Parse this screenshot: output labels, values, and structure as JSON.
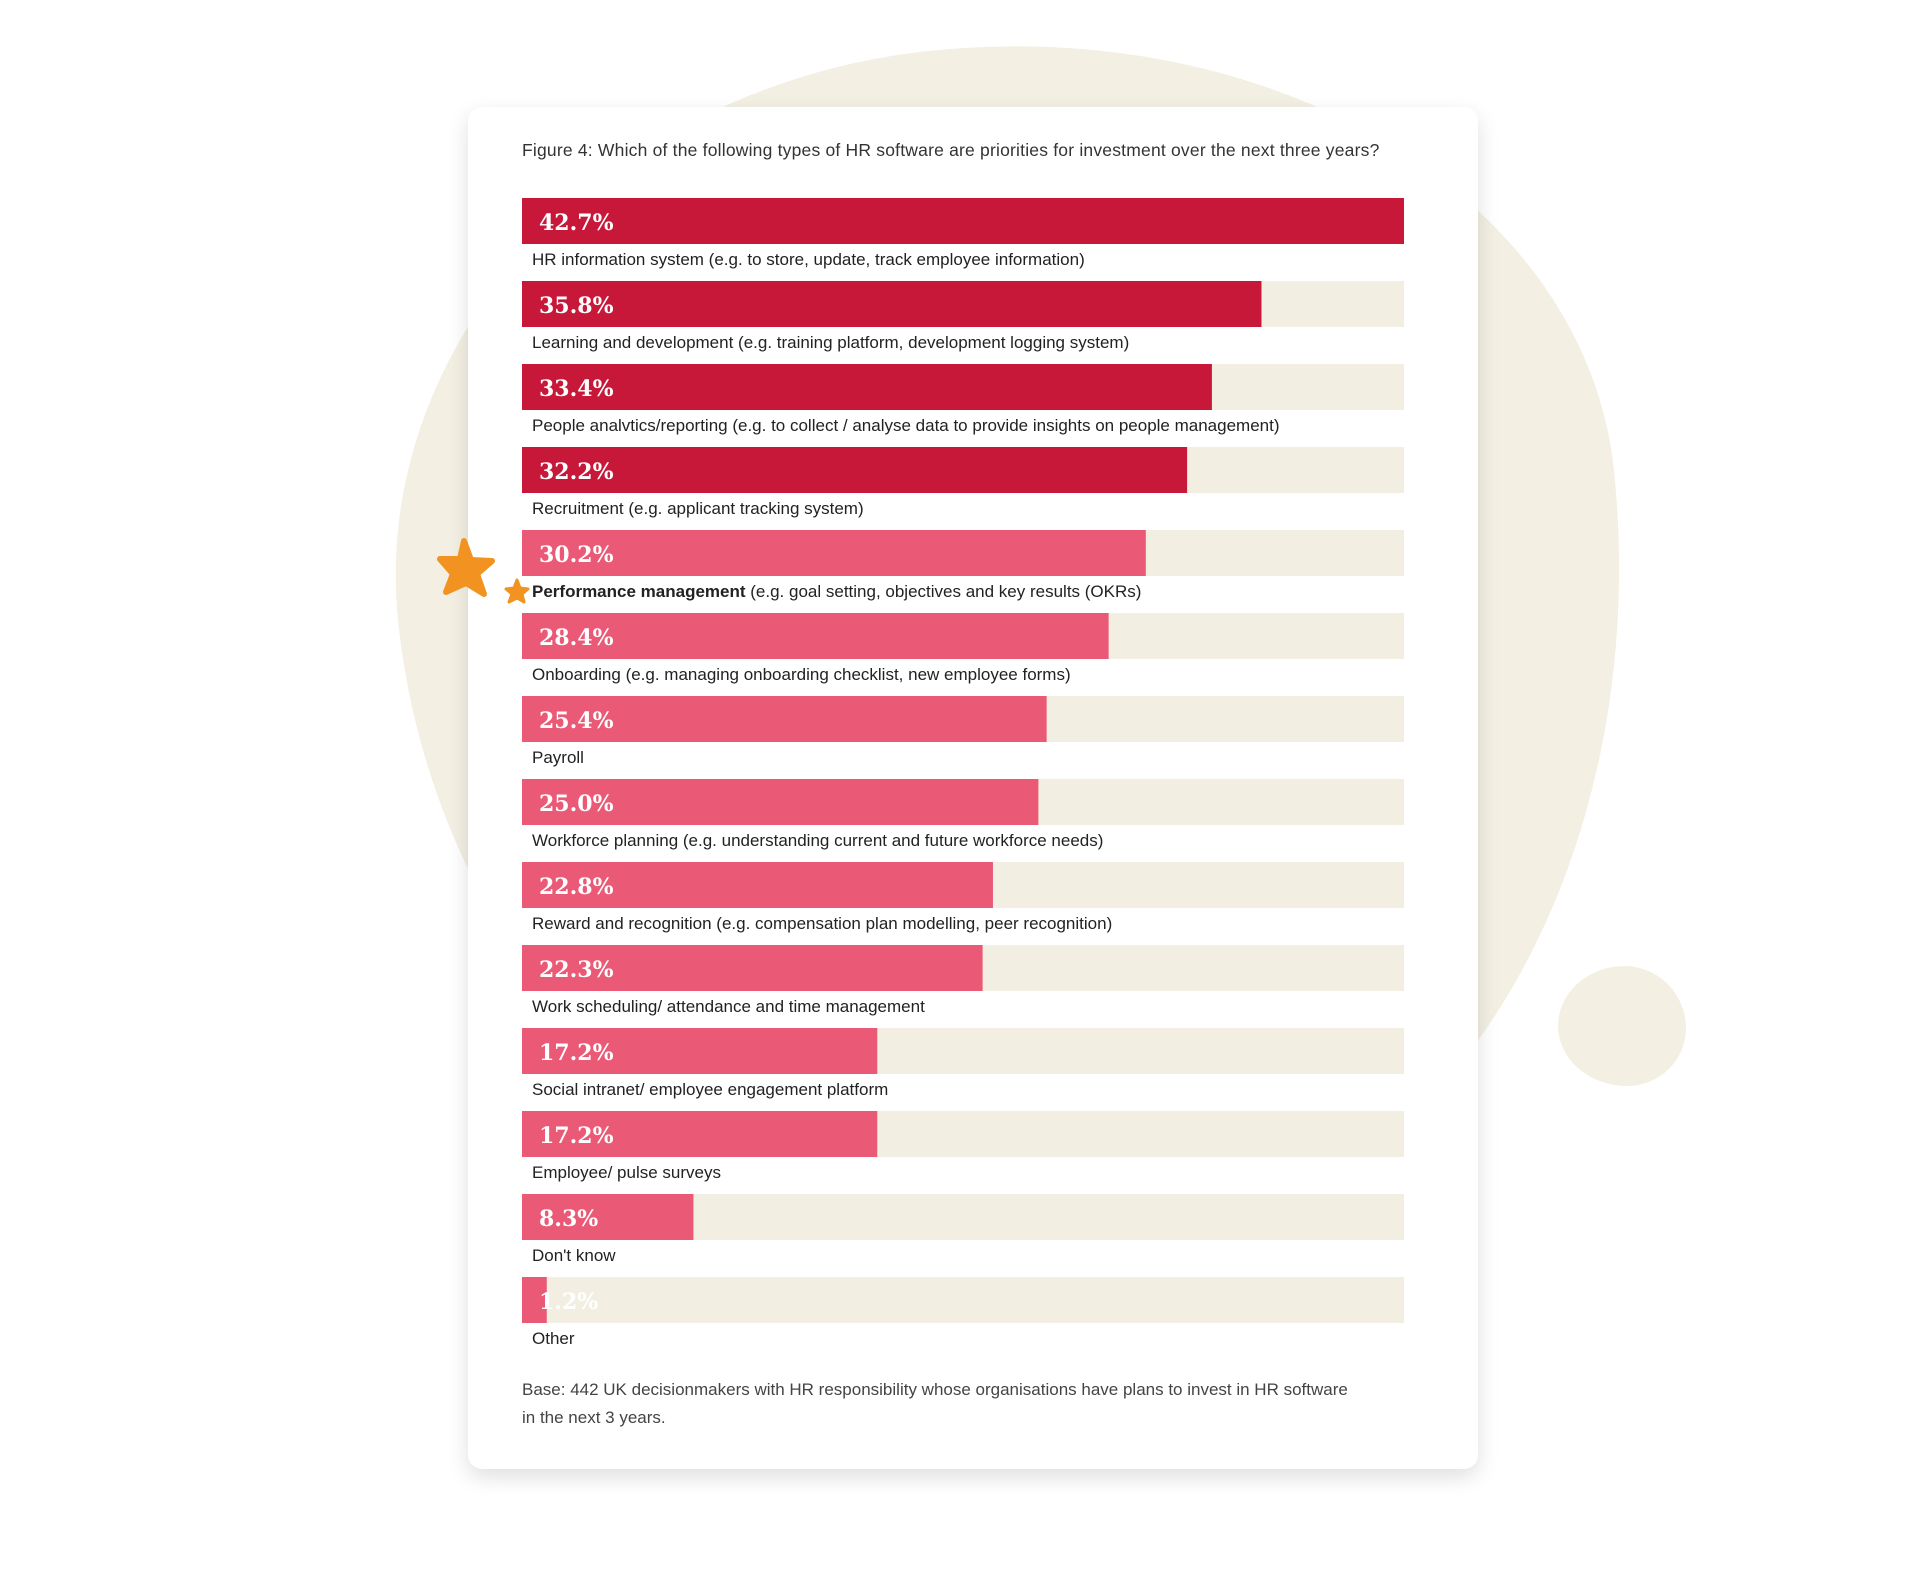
{
  "title": "Figure 4: Which of the following types of HR software are priorities for investment over the next three years?",
  "base_note": "Base: 442 UK decisionmakers with HR responsibility whose organisations have plans to invest in HR software in the next 3 years.",
  "colors": {
    "top_bar": "#c8183a",
    "other_bar": "#ea5a76",
    "track": "#f2efe2",
    "star": "#f29220",
    "blob": "#f3f0e3"
  },
  "icons": [
    "star-large-icon",
    "star-small-icon"
  ],
  "chart_data": {
    "type": "bar",
    "orientation": "horizontal",
    "title": "Figure 4: Which of the following types of HR software are priorities for investment over the next three years?",
    "xlim": [
      0,
      42.7
    ],
    "categories": [
      {
        "bold": "",
        "rest": "HR information system (e.g. to store, update, track employee information)"
      },
      {
        "bold": "",
        "rest": "Learning and development (e.g. training platform, development logging system)"
      },
      {
        "bold": "",
        "rest": "People analvtics/reporting (e.g. to collect / analyse data to provide insights on people management)"
      },
      {
        "bold": "",
        "rest": "Recruitment (e.g. applicant tracking system)"
      },
      {
        "bold": "Performance management",
        "rest": " (e.g. goal setting, objectives and key results (OKRs)"
      },
      {
        "bold": "",
        "rest": "Onboarding (e.g. managing onboarding checklist, new employee forms)"
      },
      {
        "bold": "",
        "rest": "Payroll"
      },
      {
        "bold": "",
        "rest": "Workforce planning (e.g. understanding current and future workforce needs)"
      },
      {
        "bold": "",
        "rest": "Reward and recognition (e.g. compensation plan modelling, peer recognition)"
      },
      {
        "bold": "",
        "rest": "Work scheduling/ attendance and time management"
      },
      {
        "bold": "",
        "rest": "Social intranet/ employee engagement platform"
      },
      {
        "bold": "",
        "rest": "Employee/ pulse surveys"
      },
      {
        "bold": "",
        "rest": "Don't know"
      },
      {
        "bold": "",
        "rest": "Other"
      }
    ],
    "values": [
      42.7,
      35.8,
      33.4,
      32.2,
      30.2,
      28.4,
      25.4,
      25.0,
      22.8,
      22.3,
      17.2,
      17.2,
      8.3,
      1.2
    ],
    "value_labels": [
      "42.7%",
      "35.8%",
      "33.4%",
      "32.2%",
      "30.2%",
      "28.4%",
      "25.4%",
      "25.0%",
      "22.8%",
      "22.3%",
      "17.2%",
      "17.2%",
      "8.3%",
      "1.2%"
    ],
    "highlight_top_n": 4,
    "unit": "%"
  }
}
